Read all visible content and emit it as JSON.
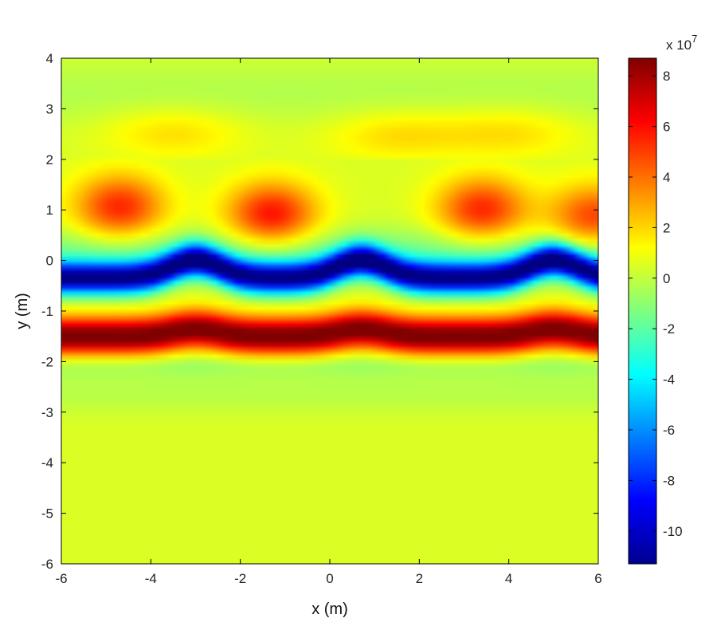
{
  "chart_data": {
    "type": "heatmap",
    "xlabel": "x (m)",
    "ylabel": "y (m)",
    "xlim": [
      -6,
      6
    ],
    "ylim": [
      -6,
      4
    ],
    "x_ticks": [
      -6,
      -4,
      -2,
      0,
      2,
      4,
      6
    ],
    "y_ticks": [
      -6,
      -5,
      -4,
      -3,
      -2,
      -1,
      0,
      1,
      2,
      3,
      4
    ],
    "colorbar": {
      "colormap": "jet",
      "range": [
        -11.3,
        8.7
      ],
      "ticks": [
        -10,
        -8,
        -6,
        -4,
        -2,
        0,
        2,
        4,
        6,
        8
      ],
      "multiplier_label": "x 10",
      "multiplier_exponent": "7"
    },
    "features": [
      {
        "y_band": [
          2.2,
          3.0
        ],
        "pattern": "weak positive lobes (~1.5e7) near x=-3.5, 1.5, 4"
      },
      {
        "y_value": 2.0,
        "pattern": "sharp discontinuity line"
      },
      {
        "y_band": [
          0.5,
          1.7
        ],
        "pattern": "positive lobes (~5e7) near x=-4.7, -1.3, 3.4, 5.9"
      },
      {
        "y_band": [
          -0.7,
          0.1
        ],
        "pattern": "negative band (~-10e7) with peaks near x=-3, 0.7, 5"
      },
      {
        "y_band": [
          -1.9,
          -1.1
        ],
        "pattern": "strong positive band (~8e7)"
      },
      {
        "y_band": [
          -6,
          -2.3
        ],
        "pattern": "near zero (~0.5e7)"
      }
    ]
  }
}
